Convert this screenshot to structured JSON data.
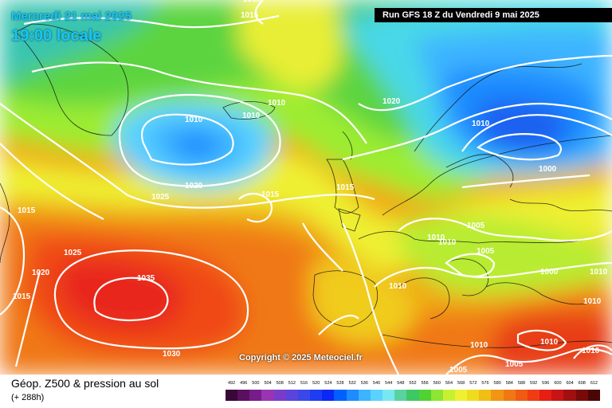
{
  "header": {
    "date": "Mercredi 21 mai 2025",
    "time": "19:00 locale",
    "run": "Run GFS 18 Z du Vendredi 9 mai 2025"
  },
  "copyright": "Copyright © 2025 Meteociel.fr",
  "footer": {
    "title": "Géop. Z500 & pression au sol",
    "subtitle": "(+ 288h)"
  },
  "scale": {
    "ticks": [
      "492",
      "496",
      "500",
      "504",
      "508",
      "512",
      "516",
      "520",
      "524",
      "528",
      "532",
      "536",
      "540",
      "544",
      "548",
      "552",
      "556",
      "560",
      "564",
      "568",
      "572",
      "576",
      "580",
      "584",
      "588",
      "592",
      "596",
      "600",
      "604",
      "608",
      "612"
    ],
    "colors": [
      "#3a0838",
      "#5a1060",
      "#781c8a",
      "#9a34b4",
      "#7a3cc8",
      "#5a44dc",
      "#3a48e8",
      "#1e3cf2",
      "#0a28f6",
      "#0060ff",
      "#1e8cff",
      "#3cb4ff",
      "#5ad2ff",
      "#78e8f0",
      "#5ad2a0",
      "#3ec864",
      "#50d232",
      "#8ce632",
      "#c8f032",
      "#f0f032",
      "#f0dc1e",
      "#f0be14",
      "#f09614",
      "#f07814",
      "#f05a14",
      "#f03c14",
      "#e61e14",
      "#c81414",
      "#a01010",
      "#780a0a",
      "#4a0606"
    ]
  },
  "isobars": [
    "1015",
    "1015",
    "1010",
    "1010",
    "1010",
    "1020",
    "1010",
    "1025",
    "1020",
    "1015",
    "1015",
    "1015",
    "1000",
    "1025",
    "1005",
    "1010",
    "1010",
    "1020",
    "1005",
    "1015",
    "1035",
    "1000",
    "1010",
    "1030",
    "1010",
    "1010",
    "1010",
    "1005",
    "1005",
    "1010",
    "1010"
  ]
}
